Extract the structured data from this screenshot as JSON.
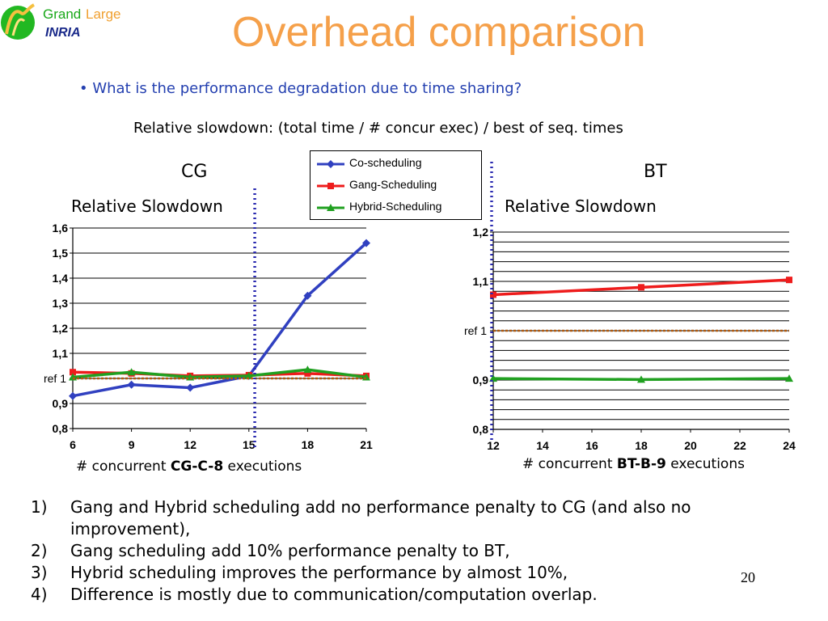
{
  "logo": {
    "grand": "Grand",
    "large": "Large",
    "inria": "INRIA"
  },
  "title": "Overhead comparison",
  "bullet": "• What is the performance degradation due to time sharing?",
  "formula": "Relative slowdown: (total time / # concur exec) / best of seq. times",
  "legend": {
    "items": [
      {
        "label": "Co-scheduling",
        "color": "#3040c0",
        "marker": "diamond"
      },
      {
        "label": "Gang-Scheduling",
        "color": "#ee1c1c",
        "marker": "square"
      },
      {
        "label": "Hybrid-Scheduling",
        "color": "#20a020",
        "marker": "triangle"
      }
    ]
  },
  "charts": {
    "cg": {
      "name": "CG",
      "ylabel": "Relative Slowdown",
      "xtitle_pre": "# concurrent ",
      "xtitle_bold": "CG-C-8",
      "xtitle_post": " executions",
      "ref_label": "ref 1"
    },
    "bt": {
      "name": "BT",
      "ylabel": "Relative Slowdown",
      "xtitle_pre": "# concurrent ",
      "xtitle_bold": "BT-B-9",
      "xtitle_post": " executions",
      "ref_label": "ref 1"
    }
  },
  "chart_data": [
    {
      "type": "line",
      "title": "CG",
      "ylabel": "Relative Slowdown",
      "xlabel": "# concurrent CG-C-8 executions",
      "x": [
        6,
        9,
        12,
        15,
        18,
        21
      ],
      "xticks": [
        "6",
        "9",
        "12",
        "15",
        "18",
        "21"
      ],
      "ylim": [
        0.8,
        1.6
      ],
      "yticks": [
        "0,8",
        "0,9",
        "1",
        "1,1",
        "1,2",
        "1,3",
        "1,4",
        "1,5",
        "1,6"
      ],
      "reference": 1.0,
      "divider_x": 15.3,
      "series": [
        {
          "name": "Co-scheduling",
          "values": [
            0.93,
            0.975,
            0.963,
            1.01,
            1.33,
            1.54
          ]
        },
        {
          "name": "Gang-Scheduling",
          "values": [
            1.025,
            1.02,
            1.01,
            1.013,
            1.02,
            1.01
          ]
        },
        {
          "name": "Hybrid-Scheduling",
          "values": [
            1.005,
            1.025,
            1.005,
            1.01,
            1.035,
            1.005
          ]
        }
      ]
    },
    {
      "type": "line",
      "title": "BT",
      "ylabel": "Relative Slowdown",
      "xlabel": "# concurrent BT-B-9 executions",
      "x": [
        12,
        18,
        24
      ],
      "xticks": [
        "12",
        "14",
        "16",
        "18",
        "20",
        "22",
        "24"
      ],
      "ylim": [
        0.8,
        1.2
      ],
      "yticks": [
        "0,8",
        "0,9",
        "1",
        "1,1",
        "1,2"
      ],
      "reference": 1.0,
      "series": [
        {
          "name": "Gang-Scheduling",
          "values": [
            1.073,
            1.088,
            1.103
          ]
        },
        {
          "name": "Hybrid-Scheduling",
          "values": [
            0.903,
            0.901,
            0.903
          ]
        }
      ]
    }
  ],
  "conclusions": [
    {
      "num": "1)",
      "text": "Gang and Hybrid scheduling add no performance penalty to CG (and also no improvement),"
    },
    {
      "num": "2)",
      "text": "Gang scheduling add 10% performance penalty to BT,"
    },
    {
      "num": "3)",
      "text": "Hybrid scheduling improves the performance by almost 10%,"
    },
    {
      "num": "4)",
      "text": "Difference is mostly due to communication/computation overlap."
    }
  ],
  "page_number": "20"
}
